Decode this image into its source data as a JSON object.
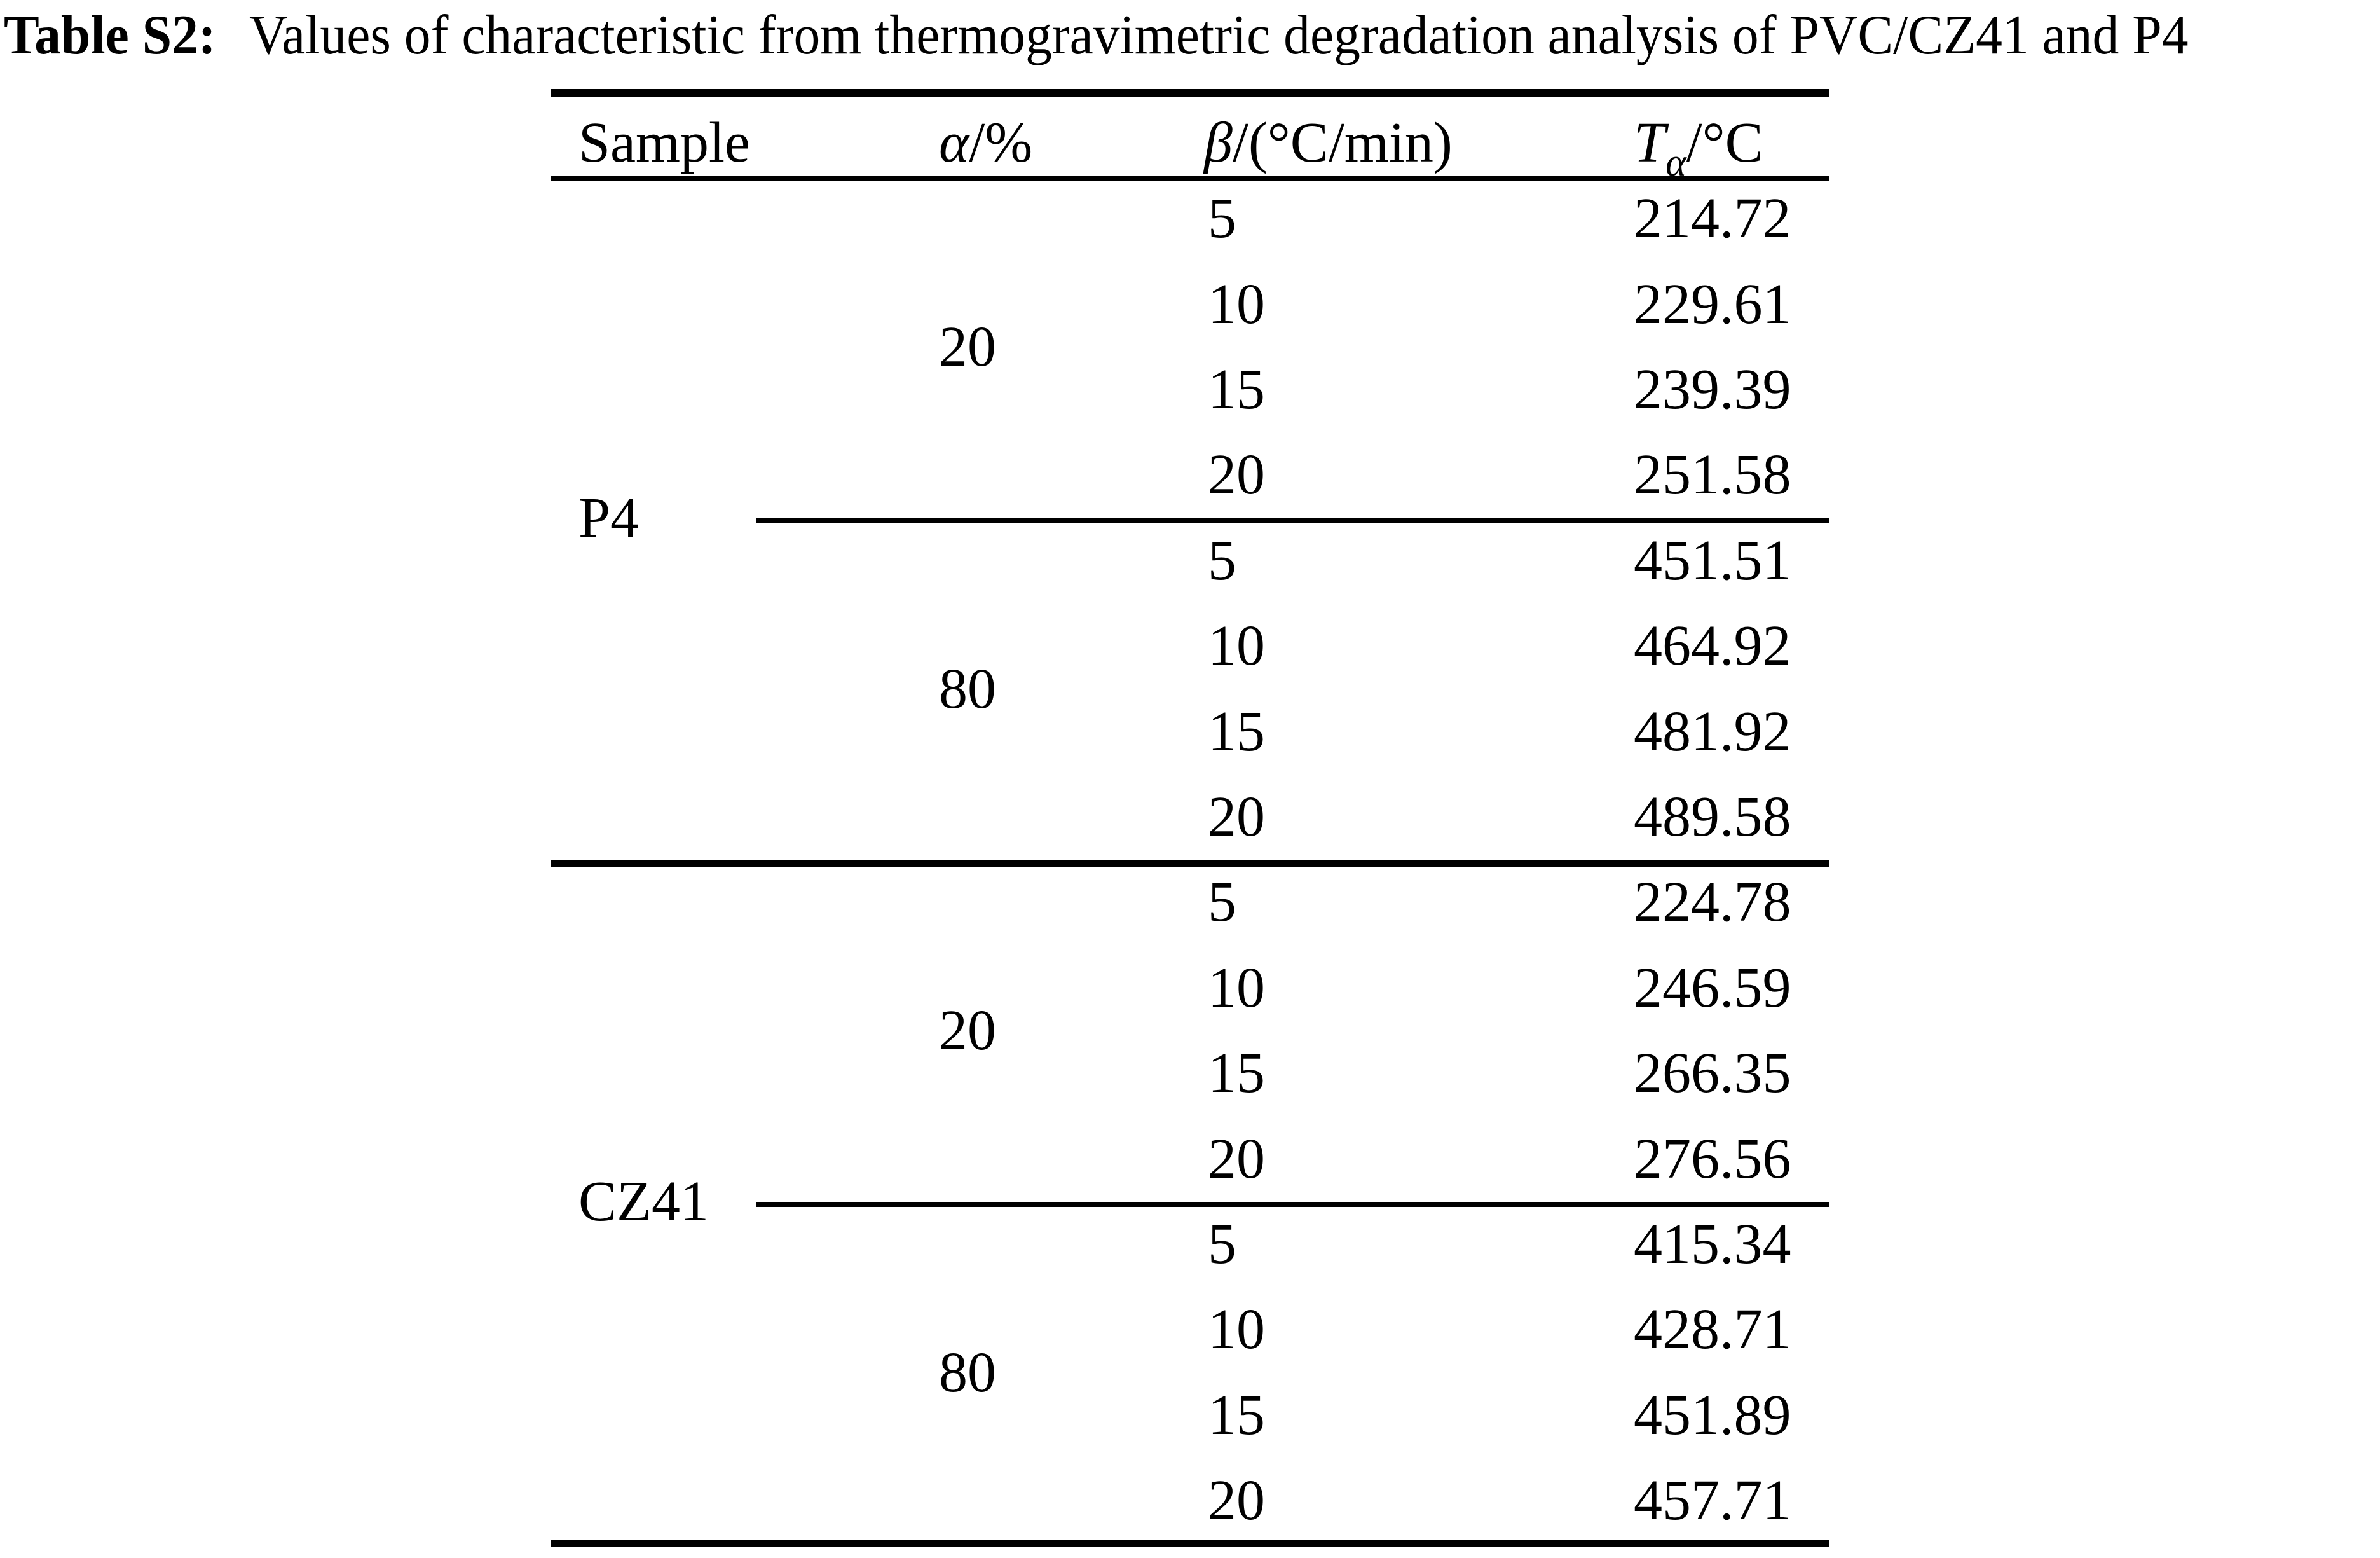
{
  "page": {
    "background_color": "#ffffff",
    "text_color": "#000000"
  },
  "title": {
    "prefix": "Table S2:",
    "text": "Values of characteristic from thermogravimetric degradation analysis of PVC/CZ41 and P4"
  },
  "table": {
    "headers": {
      "sample": "Sample",
      "alpha_symbol": "α",
      "alpha_rest": "/%",
      "beta_symbol": "β",
      "beta_rest": "/(°C/min)",
      "t_symbol": "T",
      "t_subscript": "α",
      "t_rest": "/°C"
    },
    "samples": [
      {
        "name": "P4",
        "groups": [
          {
            "alpha": "20",
            "rows": [
              {
                "beta": "5",
                "t": "214.72"
              },
              {
                "beta": "10",
                "t": "229.61"
              },
              {
                "beta": "15",
                "t": "239.39"
              },
              {
                "beta": "20",
                "t": "251.58"
              }
            ]
          },
          {
            "alpha": "80",
            "rows": [
              {
                "beta": "5",
                "t": "451.51"
              },
              {
                "beta": "10",
                "t": "464.92"
              },
              {
                "beta": "15",
                "t": "481.92"
              },
              {
                "beta": "20",
                "t": "489.58"
              }
            ]
          }
        ]
      },
      {
        "name": "CZ41",
        "groups": [
          {
            "alpha": "20",
            "rows": [
              {
                "beta": "5",
                "t": "224.78"
              },
              {
                "beta": "10",
                "t": "246.59"
              },
              {
                "beta": "15",
                "t": "266.35"
              },
              {
                "beta": "20",
                "t": "276.56"
              }
            ]
          },
          {
            "alpha": "80",
            "rows": [
              {
                "beta": "5",
                "t": "415.34"
              },
              {
                "beta": "10",
                "t": "428.71"
              },
              {
                "beta": "15",
                "t": "451.89"
              },
              {
                "beta": "20",
                "t": "457.71"
              }
            ]
          }
        ]
      }
    ]
  }
}
